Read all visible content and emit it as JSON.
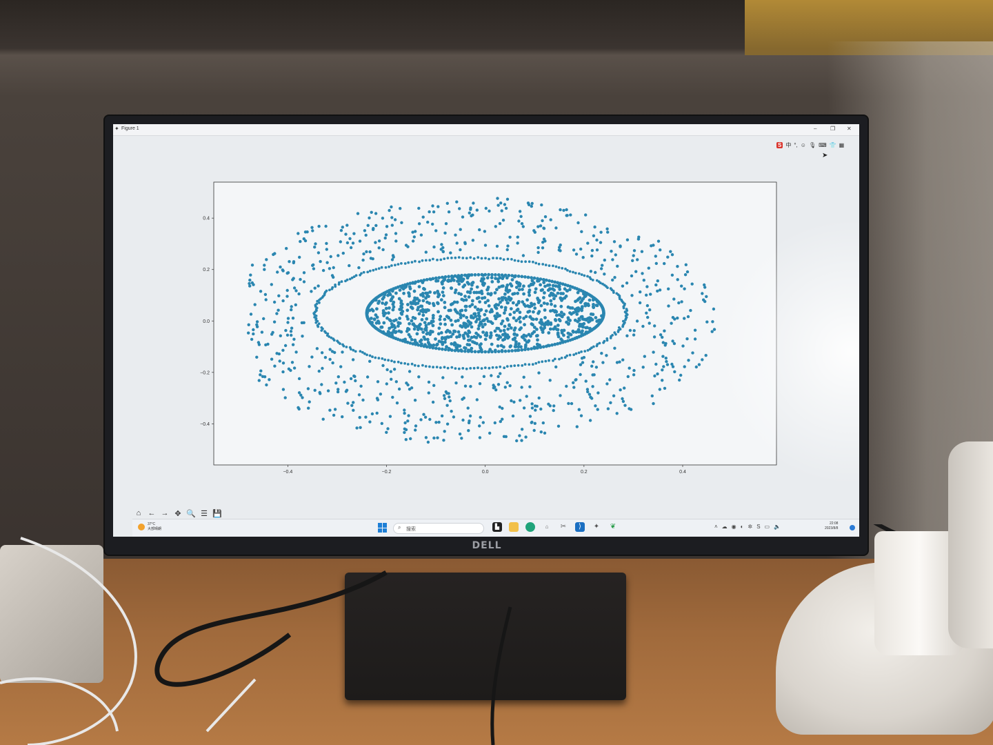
{
  "window": {
    "title": "Figure 1",
    "app_icon": "matplotlib-icon",
    "minimize": "–",
    "maximize": "❐",
    "close": "✕"
  },
  "ime_bar": {
    "logo": "S",
    "mode": "中",
    "icons": [
      "punctuation-icon",
      "emoji-icon",
      "mic-icon",
      "keyboard-icon",
      "skin-icon",
      "toolbox-icon"
    ]
  },
  "chart_data": {
    "type": "scatter",
    "title": "",
    "xlabel": "",
    "ylabel": "",
    "xlim": [
      -0.55,
      0.59
    ],
    "ylim": [
      -0.56,
      0.54
    ],
    "xticks": [
      -0.4,
      -0.2,
      0.0,
      0.2,
      0.4
    ],
    "yticks": [
      0.4,
      0.2,
      0.0,
      -0.2,
      -0.4
    ],
    "xtick_labels": [
      "−0.4",
      "−0.2",
      "0.0",
      "0.2",
      "0.4"
    ],
    "ytick_labels": [
      "0.4",
      "0.2",
      "0.0",
      "−0.2",
      "−0.4"
    ],
    "grid": false,
    "legend": "none",
    "marker_color": "#2a86b0",
    "structures": [
      {
        "name": "inner dense disk",
        "center": [
          0.0,
          0.03
        ],
        "semi_axes": [
          0.24,
          0.15
        ],
        "approx_points": 900
      },
      {
        "name": "outer ring",
        "center": [
          -0.03,
          0.03
        ],
        "semi_axes": [
          0.315,
          0.215
        ],
        "approx_points": 260
      },
      {
        "name": "scattered halo",
        "x_range": [
          -0.48,
          0.52
        ],
        "y_range": [
          -0.5,
          0.48
        ],
        "approx_points": 700
      }
    ]
  },
  "toolbar": {
    "icons": [
      "home-icon",
      "back-icon",
      "forward-icon",
      "pan-icon",
      "zoom-icon",
      "configure-subplots-icon",
      "save-icon"
    ],
    "glyphs": [
      "⌂",
      "←",
      "→",
      "✥",
      "🔍",
      "☰",
      "💾"
    ]
  },
  "taskbar": {
    "weather_temp": "37°C",
    "weather_desc": "大部晴朗",
    "search_placeholder": "搜索",
    "clock_time": "22:08",
    "clock_date": "2023/8/8"
  },
  "monitor": {
    "brand": "DELL"
  }
}
